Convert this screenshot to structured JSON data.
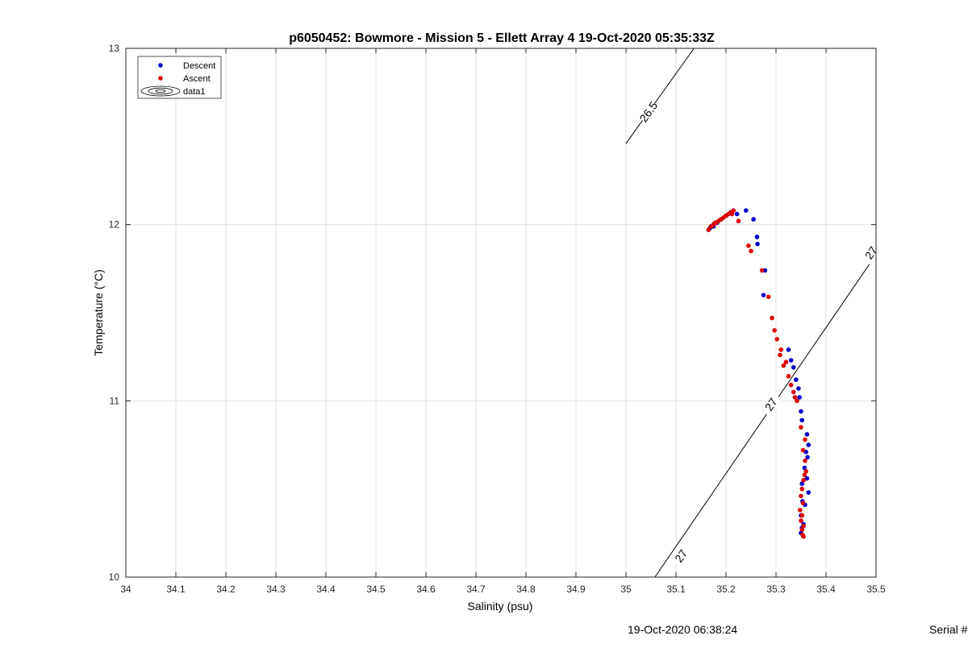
{
  "chart_data": {
    "type": "scatter",
    "title": "p6050452: Bowmore - Mission 5 - Ellett Array 4 19-Oct-2020 05:35:33Z",
    "xlabel": "Salinity (psu)",
    "ylabel": "Temperature (°C)",
    "xlim": [
      34,
      35.5
    ],
    "ylim": [
      10,
      13
    ],
    "xticks": [
      "34",
      "34.1",
      "34.2",
      "34.3",
      "34.4",
      "34.5",
      "34.6",
      "34.7",
      "34.8",
      "34.9",
      "35",
      "35.1",
      "35.2",
      "35.3",
      "35.4",
      "35.5"
    ],
    "yticks": [
      "10",
      "11",
      "12",
      "13"
    ],
    "grid": true,
    "legend_position": "top-left",
    "legend": [
      {
        "label": "Descent",
        "color": "#0000cc",
        "marker": "point"
      },
      {
        "label": "Ascent",
        "color": "#dd0000",
        "marker": "point"
      },
      {
        "label": "data1",
        "color": "#000000",
        "marker": "contour"
      }
    ],
    "series": [
      {
        "name": "Descent",
        "color": "#0000cc",
        "points": [
          [
            35.24,
            12.08
          ],
          [
            35.222,
            12.06
          ],
          [
            35.21,
            12.07
          ],
          [
            35.2,
            12.05
          ],
          [
            35.19,
            12.03
          ],
          [
            35.182,
            12.01
          ],
          [
            35.175,
            11.99
          ],
          [
            35.168,
            11.98
          ],
          [
            35.255,
            12.03
          ],
          [
            35.262,
            11.93
          ],
          [
            35.263,
            11.89
          ],
          [
            35.278,
            11.74
          ],
          [
            35.275,
            11.6
          ],
          [
            35.325,
            11.29
          ],
          [
            35.33,
            11.23
          ],
          [
            35.335,
            11.19
          ],
          [
            35.34,
            11.12
          ],
          [
            35.345,
            11.07
          ],
          [
            35.347,
            11.02
          ],
          [
            35.35,
            10.94
          ],
          [
            35.352,
            10.89
          ],
          [
            35.362,
            10.81
          ],
          [
            35.365,
            10.75
          ],
          [
            35.36,
            10.71
          ],
          [
            35.363,
            10.68
          ],
          [
            35.357,
            10.62
          ],
          [
            35.362,
            10.56
          ],
          [
            35.352,
            10.53
          ],
          [
            35.365,
            10.48
          ],
          [
            35.353,
            10.43
          ],
          [
            35.358,
            10.41
          ],
          [
            35.35,
            10.35
          ],
          [
            35.355,
            10.3
          ],
          [
            35.352,
            10.28
          ],
          [
            35.35,
            10.25
          ]
        ]
      },
      {
        "name": "Ascent",
        "color": "#dd0000",
        "points": [
          [
            35.165,
            11.97
          ],
          [
            35.17,
            11.99
          ],
          [
            35.175,
            12.0
          ],
          [
            35.18,
            12.01
          ],
          [
            35.185,
            12.02
          ],
          [
            35.19,
            12.03
          ],
          [
            35.195,
            12.04
          ],
          [
            35.2,
            12.05
          ],
          [
            35.205,
            12.06
          ],
          [
            35.21,
            12.07
          ],
          [
            35.215,
            12.08
          ],
          [
            35.212,
            12.06
          ],
          [
            35.178,
            12.01
          ],
          [
            35.225,
            12.02
          ],
          [
            35.245,
            11.88
          ],
          [
            35.25,
            11.85
          ],
          [
            35.272,
            11.74
          ],
          [
            35.285,
            11.59
          ],
          [
            35.292,
            11.47
          ],
          [
            35.297,
            11.4
          ],
          [
            35.302,
            11.35
          ],
          [
            35.31,
            11.29
          ],
          [
            35.308,
            11.26
          ],
          [
            35.32,
            11.22
          ],
          [
            35.315,
            11.2
          ],
          [
            35.325,
            11.14
          ],
          [
            35.33,
            11.09
          ],
          [
            35.335,
            11.05
          ],
          [
            35.338,
            11.02
          ],
          [
            35.342,
            11.0
          ],
          [
            35.35,
            10.85
          ],
          [
            35.358,
            10.78
          ],
          [
            35.354,
            10.72
          ],
          [
            35.358,
            10.66
          ],
          [
            35.36,
            10.6
          ],
          [
            35.357,
            10.58
          ],
          [
            35.355,
            10.55
          ],
          [
            35.352,
            10.5
          ],
          [
            35.35,
            10.46
          ],
          [
            35.354,
            10.42
          ],
          [
            35.348,
            10.38
          ],
          [
            35.352,
            10.35
          ],
          [
            35.35,
            10.32
          ],
          [
            35.355,
            10.29
          ],
          [
            35.352,
            10.27
          ],
          [
            35.353,
            10.24
          ],
          [
            35.355,
            10.23
          ]
        ]
      }
    ],
    "isopycnals": [
      {
        "label": "26.5",
        "from": [
          35.0,
          12.46
        ],
        "to": [
          35.136,
          13.0
        ],
        "label_at": [
          35.045,
          12.64
        ]
      },
      {
        "label": "27",
        "from": [
          35.058,
          10.0
        ],
        "to": [
          35.5,
          11.83
        ],
        "labels_at": [
          [
            35.11,
            10.12
          ],
          [
            35.29,
            10.98
          ],
          [
            35.49,
            11.84
          ]
        ]
      }
    ]
  },
  "footer": {
    "timestamp": "19-Oct-2020 06:38:24",
    "serial": "Serial #"
  }
}
